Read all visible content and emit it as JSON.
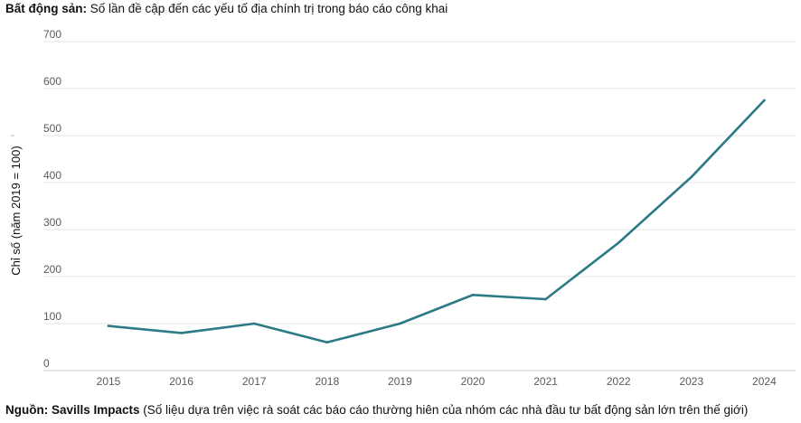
{
  "header": {
    "title_bold": "Bất động sản:",
    "title_rest": " Số lần đề cập đến các yếu tố địa chính trị trong báo cáo công khai"
  },
  "footer": {
    "source_bold": "Nguồn: Savills Impacts",
    "source_rest": " (Số liệu dựa trên việc rà soát các báo cáo thường hiên của nhóm các nhà đầu tư bất động sản lớn trên thế giới)"
  },
  "chart_data": {
    "type": "line",
    "x": [
      "2015",
      "2016",
      "2017",
      "2018",
      "2019",
      "2020",
      "2021",
      "2022",
      "2023",
      "2024"
    ],
    "series": [
      {
        "values": [
          95,
          80,
          100,
          60,
          100,
          161,
          152,
          272,
          412,
          575
        ]
      }
    ],
    "ylabel": "Chỉ số (năm 2019 = 100)",
    "yticks": [
      0,
      100,
      200,
      300,
      400,
      500,
      600,
      700
    ],
    "ylim": [
      0,
      700
    ],
    "grid": true,
    "line_color": "#2b7a85"
  }
}
